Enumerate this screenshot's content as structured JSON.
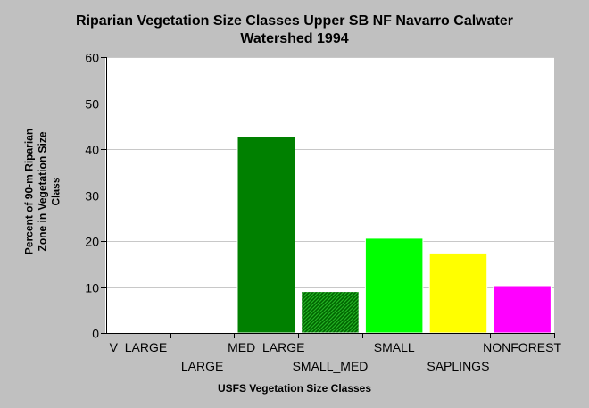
{
  "chart_data": {
    "type": "bar",
    "title": "Riparian Vegetation Size Classes Upper SB NF Navarro Calwater\nWatershed 1994",
    "xlabel": "USFS Vegetation Size Classes",
    "ylabel": "Percent of 90-m Riparian\nZone in Vegetation Size\nClass",
    "ylim": [
      0,
      60
    ],
    "yticks": [
      0,
      10,
      20,
      30,
      40,
      50,
      60
    ],
    "grid": true,
    "categories": [
      "V_LARGE",
      "LARGE",
      "MED_LARGE",
      "SMALL_MED",
      "SMALL",
      "SAPLINGS",
      "NONFOREST"
    ],
    "values": [
      0,
      0,
      42.8,
      9.0,
      20.6,
      17.4,
      10.3
    ],
    "colors": [
      "#008000",
      "#008000",
      "#008000",
      "#009000",
      "#00ff00",
      "#ffff00",
      "#ff00ff"
    ],
    "patterns": [
      "solid",
      "solid",
      "solid",
      "hatched",
      "solid",
      "solid",
      "solid"
    ],
    "background": "#c0c0c0",
    "plot_background": "#ffffff"
  }
}
